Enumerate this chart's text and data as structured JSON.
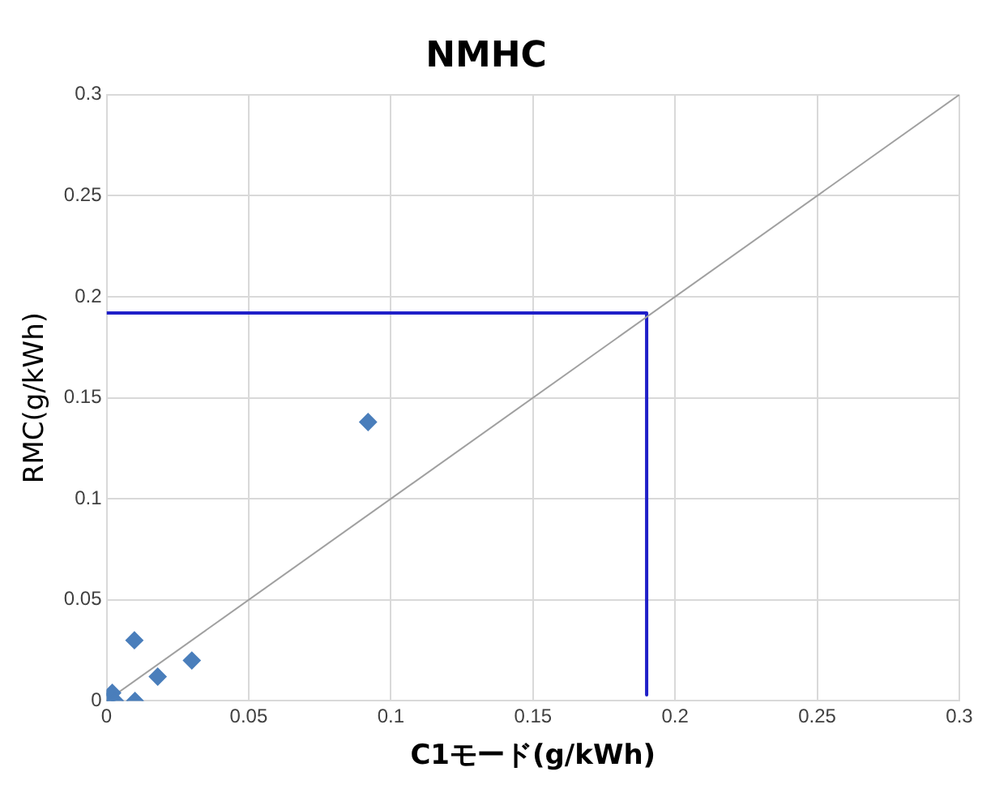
{
  "chart_data": {
    "type": "scatter",
    "title": "NMHC",
    "xlabel": "C1モード(g/kWh)",
    "ylabel": "RMC(g/kWh)",
    "marker": "diamond",
    "grid": true,
    "legend": false,
    "xlim": [
      0,
      0.3
    ],
    "xticks": [
      0,
      0.05,
      0.1,
      0.15,
      0.2,
      0.25,
      0.3
    ],
    "ylim": [
      0,
      0.3
    ],
    "yticks": [
      0,
      0.05,
      0.1,
      0.15,
      0.2,
      0.25,
      0.3
    ],
    "series": [
      {
        "type": "line",
        "marker": "none",
        "color": "#a0a0a0",
        "x": [
          0,
          0.3
        ],
        "values": [
          0,
          0.3
        ]
      },
      {
        "type": "line",
        "marker": "none",
        "color": "#1f1fc8",
        "x": [
          0,
          0.19,
          0.19
        ],
        "values": [
          0.192,
          0.192,
          0.003
        ]
      },
      {
        "color": "#4a7ebb",
        "x": [
          0,
          0.001,
          0.002,
          0.003,
          0.01,
          0.0098,
          0.018,
          0.03,
          0.092
        ],
        "values": [
          0,
          null,
          0.004,
          0,
          0,
          0.03,
          0.012,
          0.02,
          0.138
        ]
      }
    ]
  }
}
